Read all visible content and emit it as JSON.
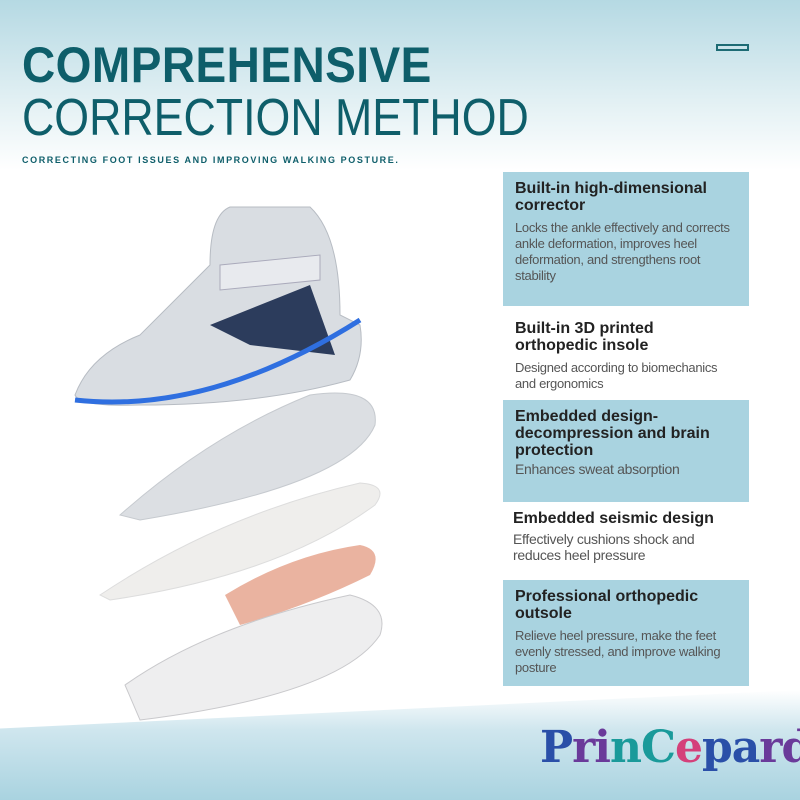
{
  "header": {
    "title_line1": "COMPREHENSIVE",
    "title_line2": "CORRECTION METHOD",
    "subtitle": "CORRECTING FOOT ISSUES AND IMPROVING WALKING POSTURE."
  },
  "features": [
    {
      "title": "Built-in high-dimensional corrector",
      "desc": "Locks the ankle effectively and corrects ankle deformation, improves heel deformation, and strengthens root stability"
    },
    {
      "title": "Built-in 3D printed orthopedic insole",
      "desc": "Designed according to biomechanics and ergonomics"
    },
    {
      "title": "Embedded design-decompression and brain protection",
      "desc": "Enhances sweat absorption"
    },
    {
      "title": "Embedded seismic design",
      "desc": "Effectively cushions shock and reduces heel pressure"
    },
    {
      "title": "Professional orthopedic outsole",
      "desc": "Relieve heel pressure, make the feet evenly stressed, and improve walking posture"
    }
  ],
  "brand": {
    "logo_text": "PrinCepard"
  },
  "colors": {
    "title": "#0e5e6a",
    "panel_blue": "#a9d3e0",
    "led": "#2f6fe0"
  }
}
